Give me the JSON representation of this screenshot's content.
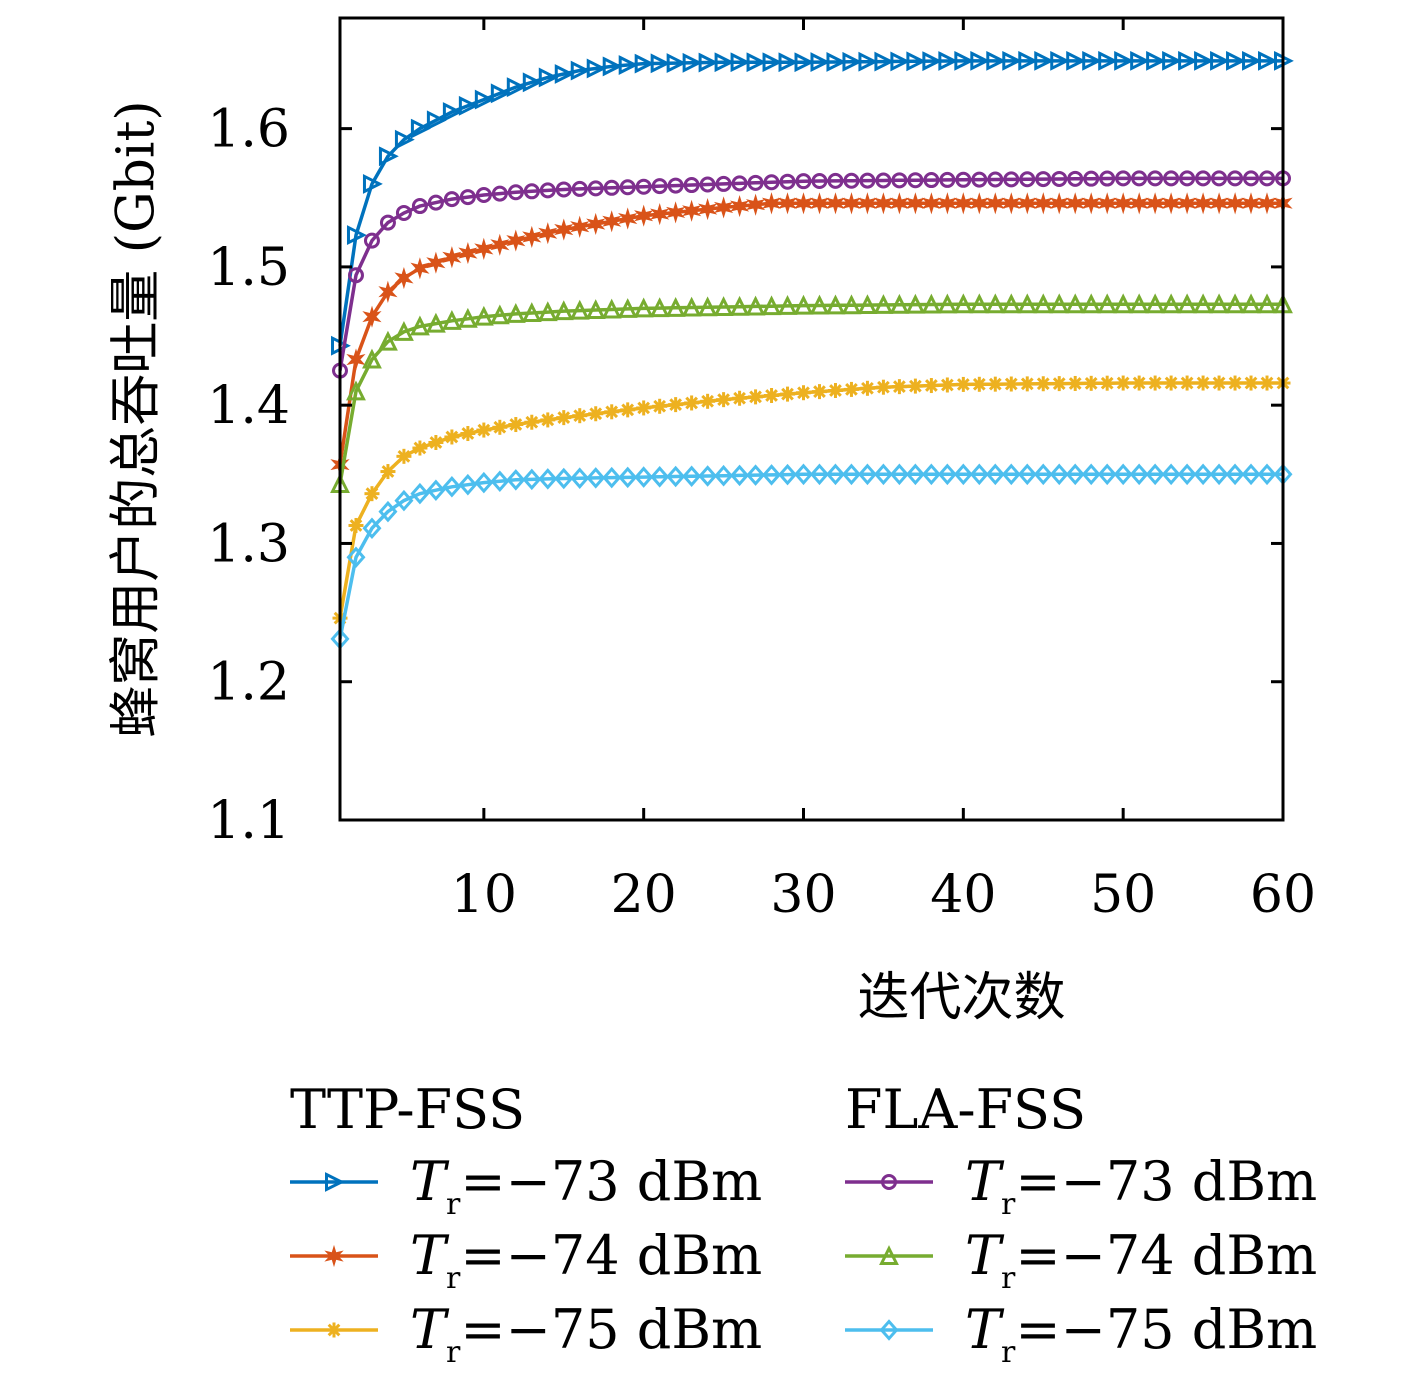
{
  "chart_data": {
    "type": "line",
    "xlabel": "迭代次数",
    "ylabel": "蜂窝用户的总吞吐量 (Gbit)",
    "xlim": [
      1,
      60
    ],
    "ylim": [
      1.1,
      1.68
    ],
    "xticks": [
      10,
      20,
      30,
      40,
      50,
      60
    ],
    "yticks": [
      1.1,
      1.2,
      1.3,
      1.4,
      1.5,
      1.6
    ],
    "grid": false,
    "legend_groups": [
      {
        "title": "TTP-FSS",
        "series_indices": [
          0,
          1,
          2
        ]
      },
      {
        "title": "FLA-FSS",
        "series_indices": [
          3,
          4,
          5
        ]
      }
    ],
    "series": [
      {
        "name": "Tr=−73 dBm",
        "name_main": "T",
        "name_sub": "r",
        "name_rest": "=−73 dBm",
        "group": "TTP-FSS",
        "color": "#0072BD",
        "marker": "triangle-right",
        "x": [
          1,
          2,
          3,
          4,
          5,
          6,
          8,
          10,
          12,
          14,
          16,
          18,
          20,
          25,
          30,
          40,
          50,
          60
        ],
        "y": [
          1.443,
          1.523,
          1.56,
          1.58,
          1.592,
          1.6,
          1.612,
          1.621,
          1.63,
          1.637,
          1.642,
          1.645,
          1.647,
          1.648,
          1.648,
          1.649,
          1.649,
          1.649
        ]
      },
      {
        "name": "Tr=−74 dBm",
        "name_main": "T",
        "name_sub": "r",
        "name_rest": "=−74 dBm",
        "group": "TTP-FSS",
        "color": "#D95319",
        "marker": "hexagram",
        "x": [
          1,
          2,
          3,
          4,
          5,
          6,
          8,
          10,
          12,
          15,
          20,
          25,
          28,
          30,
          40,
          50,
          60
        ],
        "y": [
          1.357,
          1.433,
          1.464,
          1.482,
          1.492,
          1.499,
          1.507,
          1.513,
          1.519,
          1.527,
          1.537,
          1.543,
          1.546,
          1.546,
          1.546,
          1.546,
          1.546
        ]
      },
      {
        "name": "Tr=−75 dBm",
        "name_main": "T",
        "name_sub": "r",
        "name_rest": "=−75 dBm",
        "group": "TTP-FSS",
        "color": "#EDB120",
        "marker": "asterisk",
        "x": [
          1,
          2,
          3,
          4,
          5,
          6,
          8,
          10,
          12,
          15,
          20,
          25,
          30,
          35,
          40,
          50,
          60
        ],
        "y": [
          1.246,
          1.313,
          1.336,
          1.352,
          1.363,
          1.369,
          1.377,
          1.382,
          1.386,
          1.391,
          1.398,
          1.404,
          1.409,
          1.413,
          1.415,
          1.416,
          1.416
        ]
      },
      {
        "name": "Tr=−73 dBm",
        "name_main": "T",
        "name_sub": "r",
        "name_rest": "=−73 dBm",
        "group": "FLA-FSS",
        "color": "#7E2F8E",
        "marker": "circle",
        "x": [
          1,
          2,
          3,
          4,
          5,
          6,
          8,
          10,
          12,
          15,
          20,
          25,
          30,
          40,
          50,
          60
        ],
        "y": [
          1.425,
          1.494,
          1.519,
          1.532,
          1.539,
          1.544,
          1.549,
          1.552,
          1.554,
          1.556,
          1.558,
          1.56,
          1.562,
          1.563,
          1.564,
          1.564
        ]
      },
      {
        "name": "Tr=−74 dBm",
        "name_main": "T",
        "name_sub": "r",
        "name_rest": "=−74 dBm",
        "group": "FLA-FSS",
        "color": "#77AC30",
        "marker": "triangle-up",
        "x": [
          1,
          2,
          3,
          4,
          5,
          6,
          8,
          10,
          12,
          15,
          20,
          25,
          30,
          40,
          50,
          60
        ],
        "y": [
          1.343,
          1.41,
          1.433,
          1.446,
          1.453,
          1.457,
          1.461,
          1.464,
          1.466,
          1.468,
          1.47,
          1.471,
          1.472,
          1.473,
          1.473,
          1.473
        ]
      },
      {
        "name": "Tr=−75 dBm",
        "name_main": "T",
        "name_sub": "r",
        "name_rest": "=−75 dBm",
        "group": "FLA-FSS",
        "color": "#4DBEEE",
        "marker": "diamond",
        "x": [
          1,
          2,
          3,
          4,
          5,
          6,
          8,
          10,
          12,
          15,
          20,
          25,
          30,
          40,
          50,
          60
        ],
        "y": [
          1.231,
          1.29,
          1.311,
          1.323,
          1.331,
          1.336,
          1.341,
          1.344,
          1.346,
          1.347,
          1.348,
          1.349,
          1.35,
          1.35,
          1.35,
          1.35
        ]
      }
    ]
  }
}
